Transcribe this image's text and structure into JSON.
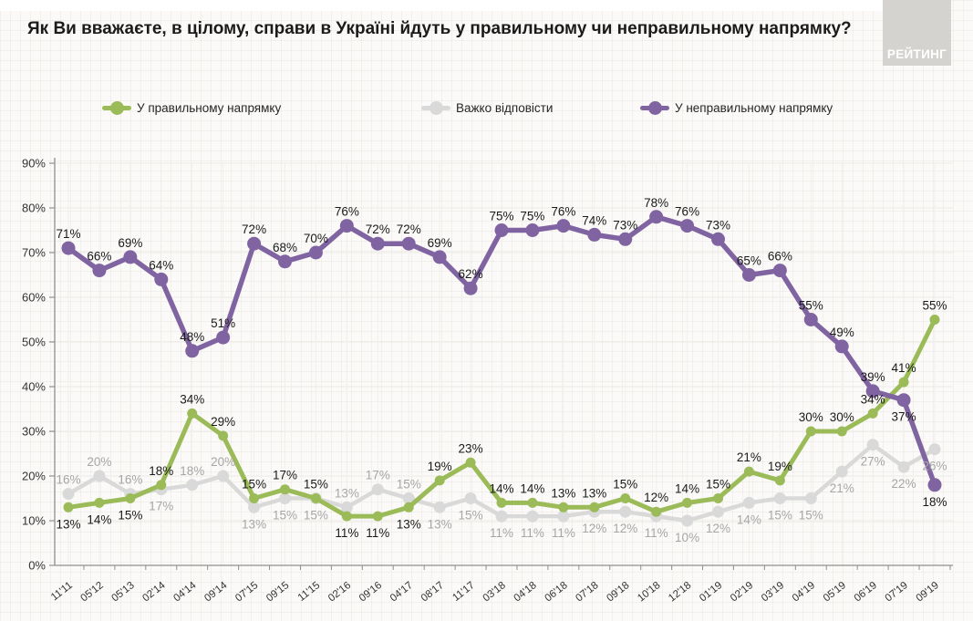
{
  "header": {
    "title": "Як Ви вважаєте, в цілому, справи в Україні йдуть у правильному чи неправильному напрямку?",
    "logo": "РЕЙТИНГ"
  },
  "chart_data": {
    "type": "line",
    "title": "Як Ви вважаєте, в цілому, справи в Україні йдуть у правильному чи неправильному напрямку?",
    "categories": [
      "11'11",
      "05'12",
      "05'13",
      "02'14",
      "04'14",
      "09'14",
      "07'15",
      "09'15",
      "11'15",
      "02'16",
      "09'16",
      "04'17",
      "08'17",
      "11'17",
      "03'18",
      "04'18",
      "06'18",
      "07'18",
      "09'18",
      "10'18",
      "12'18",
      "01'19",
      "02'19",
      "03'19",
      "04'19",
      "05'19",
      "06'19",
      "07'19",
      "09'19"
    ],
    "series": [
      {
        "name": "У правильному напрямку",
        "color": "#9bbb59",
        "label_color": "#1a1a1a",
        "values": [
          13,
          14,
          15,
          18,
          34,
          29,
          15,
          17,
          15,
          11,
          11,
          13,
          19,
          23,
          14,
          14,
          13,
          13,
          15,
          12,
          14,
          15,
          21,
          19,
          30,
          30,
          34,
          41,
          55
        ],
        "label_default": "above",
        "label_flip_idx": [
          0,
          1,
          2,
          9,
          10,
          11
        ]
      },
      {
        "name": "Важко відповісти",
        "color": "#d9d9d9",
        "label_color": "#a6a6a6",
        "values": [
          16,
          20,
          16,
          17,
          18,
          20,
          13,
          15,
          15,
          13,
          17,
          15,
          13,
          15,
          11,
          11,
          11,
          12,
          12,
          11,
          10,
          12,
          14,
          15,
          15,
          21,
          27,
          22,
          26
        ],
        "label_default": "below",
        "label_flip_idx": [
          0,
          1,
          2,
          4,
          5,
          9,
          10,
          11
        ]
      },
      {
        "name": "У неправильному напрямку",
        "color": "#8064a2",
        "label_color": "#1a1a1a",
        "values": [
          71,
          66,
          69,
          64,
          48,
          51,
          72,
          68,
          70,
          76,
          72,
          72,
          69,
          62,
          75,
          75,
          76,
          74,
          73,
          78,
          76,
          73,
          65,
          66,
          55,
          49,
          39,
          37,
          18
        ],
        "label_default": "above",
        "label_flip_idx": [
          27,
          28
        ]
      }
    ],
    "ylim": [
      0,
      90
    ],
    "ytick_step": 10,
    "yticks": [
      "0%",
      "10%",
      "20%",
      "30%",
      "40%",
      "50%",
      "60%",
      "70%",
      "80%",
      "90%"
    ],
    "label_suffix": "%",
    "grid": true,
    "legend_position": "top",
    "xlabel": "",
    "ylabel": ""
  }
}
